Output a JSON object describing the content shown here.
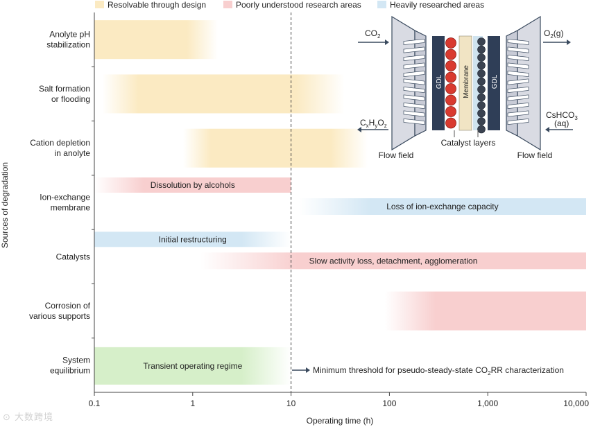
{
  "legend": [
    {
      "key": "design",
      "label": "Resolvable through design",
      "color": "#fbeac2"
    },
    {
      "key": "poor",
      "label": "Poorly understood research areas",
      "color": "#f8cfcf"
    },
    {
      "key": "heavy",
      "label": "Heavily researched areas",
      "color": "#d3e7f4"
    }
  ],
  "axis": {
    "xlabel": "Operating time (h)",
    "ylabel": "Sources of degradation",
    "ticks": [
      {
        "v": 0.1,
        "label": "0.1"
      },
      {
        "v": 1,
        "label": "1"
      },
      {
        "v": 10,
        "label": "10"
      },
      {
        "v": 100,
        "label": "100"
      },
      {
        "v": 1000,
        "label": "1,000"
      },
      {
        "v": 10000,
        "label": "10,000"
      }
    ],
    "xrange": [
      0.1,
      10000
    ],
    "threshold": 10
  },
  "categories": [
    {
      "lines": [
        "Anolyte pH",
        "stabilization"
      ]
    },
    {
      "lines": [
        "Salt formation",
        "or flooding"
      ]
    },
    {
      "lines": [
        "Cation depletion",
        "in anolyte"
      ]
    },
    {
      "lines": [
        "Ion-exchange",
        "membrane"
      ]
    },
    {
      "lines": [
        "Catalysts"
      ]
    },
    {
      "lines": [
        "Corrosion of",
        "various supports"
      ]
    },
    {
      "lines": [
        "System",
        "equilibrium"
      ]
    }
  ],
  "bars": [
    {
      "row": 0,
      "sub": "full",
      "start": 0.1,
      "end": 1.8,
      "cls": "design",
      "fade": "right",
      "label": ""
    },
    {
      "row": 1,
      "sub": "full",
      "start": 0.12,
      "end": 35,
      "cls": "design",
      "fade": "both",
      "label": ""
    },
    {
      "row": 2,
      "sub": "full",
      "start": 0.8,
      "end": 60,
      "cls": "design",
      "fade": "both",
      "label": ""
    },
    {
      "row": 3,
      "sub": "top",
      "start": 0.1,
      "end": 10,
      "cls": "poor",
      "fade": "left",
      "label": "Dissolution by alcohols"
    },
    {
      "row": 3,
      "sub": "bottom",
      "start": 12,
      "end": 10000,
      "cls": "heavy",
      "fade": "left",
      "label": "Loss of ion-exchange capacity"
    },
    {
      "row": 4,
      "sub": "top",
      "start": 0.1,
      "end": 10,
      "cls": "heavy",
      "fade": "right",
      "label": "Initial restructuring"
    },
    {
      "row": 4,
      "sub": "bottom",
      "start": 1.2,
      "end": 10000,
      "cls": "poor",
      "fade": "left",
      "label": "Slow activity loss, detachment, agglomeration"
    },
    {
      "row": 5,
      "sub": "full",
      "start": 90,
      "end": 10000,
      "cls": "poor",
      "fade": "left",
      "label": ""
    },
    {
      "row": 6,
      "sub": "full",
      "start": 0.1,
      "end": 10,
      "cls": "green",
      "fade": "right",
      "label": "Transient operating regime"
    }
  ],
  "green_color": "#d6efc9",
  "threshold_note": {
    "prefix": "Minimum threshold for pseudo-steady-state CO",
    "sub": "2",
    "suffix": "RR characterization"
  },
  "inset": {
    "co2_in": {
      "main": "CO",
      "sub": "2"
    },
    "o2_out": {
      "main": "O",
      "sub": "2",
      "suffix": "(g)"
    },
    "product": {
      "p1": "C",
      "s1": "x",
      "p2": "H",
      "s2": "y",
      "p3": "O",
      "s3": "z"
    },
    "electrolyte": {
      "line1_main": "CsHCO",
      "line1_sub": "3",
      "line2": "(aq)"
    },
    "gdl": "GDL",
    "membrane": "Membrane",
    "catalyst_layers": "Catalyst layers",
    "flow_field_left": "Flow field",
    "flow_field_right": "Flow field"
  },
  "watermark": "大数跨境"
}
